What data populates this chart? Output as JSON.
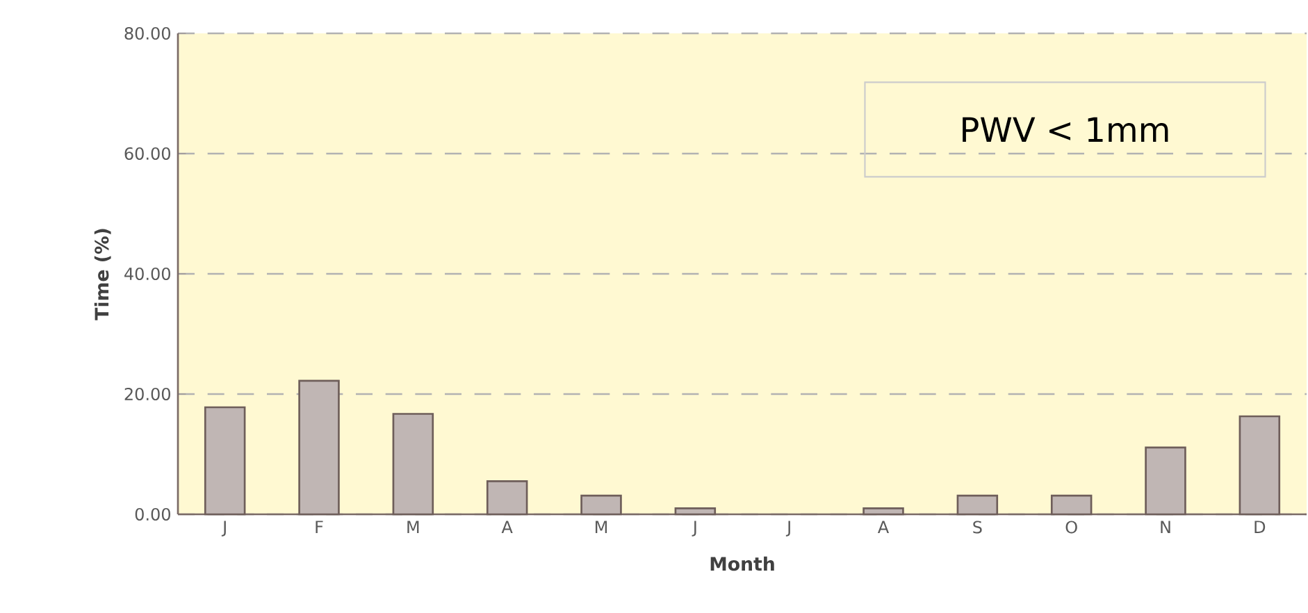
{
  "chart_data": {
    "type": "bar",
    "xlabel": "Month",
    "ylabel": "Time (%)",
    "categories": [
      "J",
      "F",
      "M",
      "A",
      "M",
      "J",
      "J",
      "A",
      "S",
      "O",
      "N",
      "D"
    ],
    "values": [
      17.8,
      22.2,
      16.7,
      5.5,
      3.1,
      1.0,
      0,
      1.0,
      3.1,
      3.1,
      11.1,
      16.3
    ],
    "color": "#c0b6b4",
    "ylim": [
      0,
      80
    ],
    "yticks": [
      {
        "value": 0,
        "label": "0.00"
      },
      {
        "value": 20,
        "label": "20.00"
      },
      {
        "value": 40,
        "label": "40.00"
      },
      {
        "value": 60,
        "label": "60.00"
      },
      {
        "value": 80,
        "label": "80.00"
      }
    ],
    "grid": "y",
    "annotations": [
      "PWV < 1mm"
    ]
  }
}
